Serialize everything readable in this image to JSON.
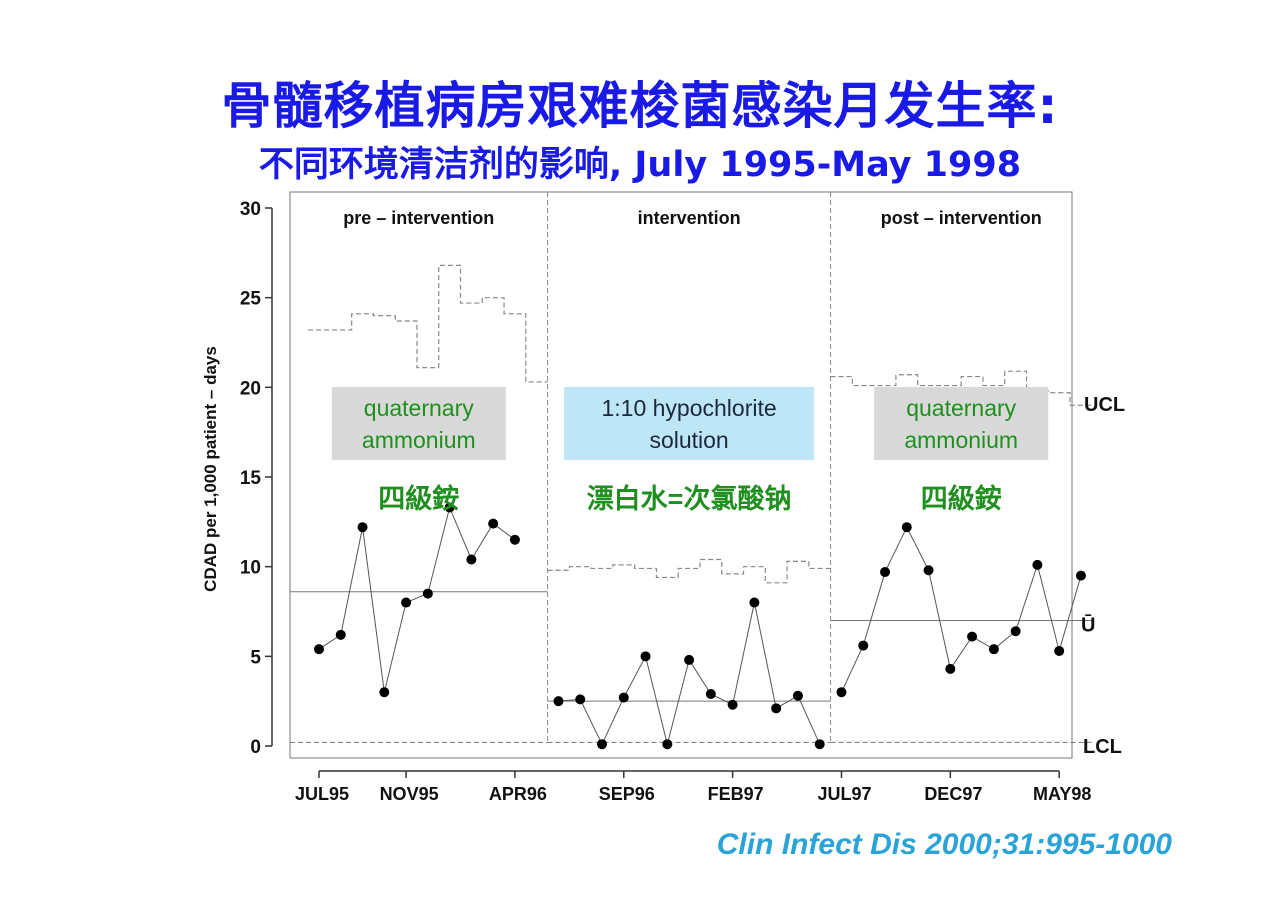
{
  "header": {
    "title": "骨髓移植病房艰难梭菌感染月发生率:",
    "subtitle": "不同环境清洁剂的影响, July 1995-May 1998"
  },
  "citation": "Clin Infect Dis 2000;31:995-1000",
  "colors": {
    "title": "#1a1ae6",
    "citation": "#2aa3d9",
    "box_gray": "#d9d9d9",
    "box_blue": "#bfe6f7",
    "green_text": "#1f8f1f"
  },
  "chart_data": {
    "type": "line",
    "ylabel": "CDAD  per 1,000  patient – days",
    "ylim": [
      0,
      30
    ],
    "yticks": [
      0,
      5,
      10,
      15,
      20,
      25,
      30
    ],
    "xticklabels": [
      "JUL95",
      "NOV95",
      "APR96",
      "SEP96",
      "FEB97",
      "JUL97",
      "DEC97",
      "MAY98"
    ],
    "xtick_months": [
      0,
      4,
      9,
      14,
      19,
      24,
      29,
      34
    ],
    "grid": false,
    "phases": [
      {
        "label": "pre – intervention",
        "box_text": [
          "quaternary",
          "ammonium"
        ],
        "box_style": "gray",
        "chinese_label": "四級銨",
        "mean": 8.6,
        "lcl": 0.2,
        "months": [
          0,
          1,
          2,
          3,
          4,
          5,
          6,
          7,
          8,
          9,
          10
        ],
        "values": [
          5.4,
          6.2,
          12.2,
          3.0,
          8.0,
          8.5,
          13.3,
          10.4,
          12.4,
          11.5,
          null
        ],
        "ucl_steps": [
          23.2,
          23.2,
          24.1,
          24.0,
          23.7,
          21.1,
          26.8,
          24.7,
          25.0,
          24.1,
          20.3
        ]
      },
      {
        "label": "intervention",
        "box_text": [
          "1:10 hypochlorite",
          "solution"
        ],
        "box_style": "blue",
        "chinese_label": "漂白水=次氯酸钠",
        "mean": 2.5,
        "lcl": 0.2,
        "months": [
          11,
          12,
          13,
          14,
          15,
          16,
          17,
          18,
          19,
          20,
          21,
          22,
          23
        ],
        "values": [
          2.5,
          2.6,
          0.1,
          2.7,
          5.0,
          0.1,
          4.8,
          2.9,
          2.3,
          8.0,
          2.1,
          2.8,
          0.1
        ],
        "ucl_steps": [
          9.8,
          10.0,
          9.9,
          10.1,
          9.9,
          9.4,
          9.9,
          10.4,
          9.6,
          10.0,
          9.1,
          10.3,
          9.9
        ]
      },
      {
        "label": "post – intervention",
        "box_text": [
          "quaternary",
          "ammonium"
        ],
        "box_style": "gray",
        "chinese_label": "四級銨",
        "mean": 7.0,
        "lcl": 0.2,
        "months": [
          24,
          25,
          26,
          27,
          28,
          29,
          30,
          31,
          32,
          33,
          34,
          35
        ],
        "values": [
          3.0,
          5.6,
          9.7,
          12.2,
          9.8,
          4.3,
          6.1,
          5.4,
          6.4,
          10.1,
          5.3,
          9.5
        ],
        "ucl_steps": [
          20.6,
          20.1,
          20.1,
          20.7,
          20.1,
          20.1,
          20.6,
          20.1,
          20.9,
          19.8,
          19.7,
          19.0
        ]
      }
    ],
    "right_labels": {
      "ucl": "UCL",
      "mean": "Ū",
      "lcl": "LCL"
    }
  }
}
